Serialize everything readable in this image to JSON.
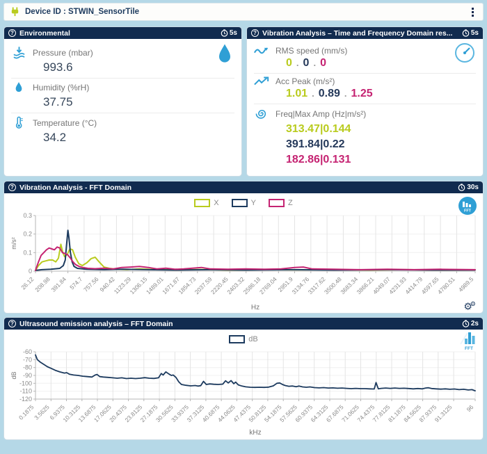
{
  "device_bar": {
    "title": "Device ID : STWIN_SensorTile"
  },
  "colors": {
    "accent_blue": "#2f9fd5",
    "header_navy": "#112b4f",
    "series_x_lime": "#b9cb1e",
    "series_y_navy": "#1c3a5e",
    "series_z_magenta": "#c52372",
    "page_background": "#b5d8e7"
  },
  "panels": {
    "environmental": {
      "title": "Environmental",
      "refresh": "5s",
      "metrics": [
        {
          "icon": "pressure-icon",
          "label": "Pressure (mbar)",
          "value": "993.6"
        },
        {
          "icon": "humidity-icon",
          "label": "Humidity (%rH)",
          "value": "37.75"
        },
        {
          "icon": "temperature-icon",
          "label": "Temperature (°C)",
          "value": "34.2"
        }
      ]
    },
    "vibration_time": {
      "title": "Vibration Analysis – Time and Frequency Domain res...",
      "refresh": "5s",
      "rms": {
        "label": "RMS speed (mm/s)",
        "values": [
          "0",
          "0",
          "0"
        ]
      },
      "acc_peak": {
        "label": "Acc Peak (m/s²)",
        "values": [
          "1.01",
          "0.89",
          "1.25"
        ]
      },
      "freq_max_amp": {
        "label": "Freq|Max Amp (Hz|m/s²)",
        "lines": [
          "313.47|0.144",
          "391.84|0.22",
          "182.86|0.131"
        ]
      }
    },
    "vibration_fft": {
      "title": "Vibration Analysis - FFT Domain",
      "refresh": "30s"
    },
    "ultrasound_fft": {
      "title": "Ultrasound emission analysis – FFT Domain",
      "refresh": "2s"
    }
  },
  "chart_data": [
    {
      "type": "line",
      "title": "Vibration Analysis - FFT Domain",
      "xlabel": "Hz",
      "ylabel": "m/s²",
      "ylim": [
        0,
        0.3
      ],
      "yticks": [
        0,
        0.1,
        0.2,
        0.3
      ],
      "xlim": [
        26.12,
        4989.5
      ],
      "xticks": [
        26.12,
        208.98,
        391.84,
        574.7,
        757.56,
        940.42,
        1123.29,
        1306.15,
        1489.01,
        1671.87,
        1854.73,
        2037.59,
        2220.45,
        2403.32,
        2586.18,
        2769.04,
        2951.9,
        3134.76,
        3317.62,
        3500.48,
        3683.34,
        3866.21,
        4049.07,
        4231.93,
        4414.79,
        4597.65,
        4780.51,
        4989.5
      ],
      "grid": "on",
      "legend_position": "top",
      "stroke": 2,
      "series": [
        {
          "name": "X",
          "color": "#b9cb1e",
          "points": [
            [
              26,
              0.004
            ],
            [
              60,
              0.03
            ],
            [
              100,
              0.05
            ],
            [
              140,
              0.055
            ],
            [
              180,
              0.06
            ],
            [
              220,
              0.06
            ],
            [
              255,
              0.05
            ],
            [
              285,
              0.07
            ],
            [
              313,
              0.145
            ],
            [
              335,
              0.1
            ],
            [
              355,
              0.078
            ],
            [
              385,
              0.09
            ],
            [
              415,
              0.12
            ],
            [
              445,
              0.115
            ],
            [
              475,
              0.075
            ],
            [
              515,
              0.04
            ],
            [
              555,
              0.03
            ],
            [
              605,
              0.045
            ],
            [
              655,
              0.068
            ],
            [
              700,
              0.075
            ],
            [
              745,
              0.05
            ],
            [
              800,
              0.022
            ],
            [
              860,
              0.015
            ],
            [
              940,
              0.01
            ],
            [
              1060,
              0.008
            ],
            [
              1200,
              0.012
            ],
            [
              1400,
              0.008
            ],
            [
              1650,
              0.007
            ],
            [
              1900,
              0.009
            ],
            [
              2200,
              0.006
            ],
            [
              2600,
              0.008
            ],
            [
              3000,
              0.007
            ],
            [
              3400,
              0.008
            ],
            [
              3800,
              0.006
            ],
            [
              4200,
              0.008
            ],
            [
              4600,
              0.006
            ],
            [
              4989,
              0.007
            ]
          ]
        },
        {
          "name": "Y",
          "color": "#1c3a5e",
          "points": [
            [
              26,
              0.004
            ],
            [
              100,
              0.008
            ],
            [
              200,
              0.01
            ],
            [
              300,
              0.015
            ],
            [
              340,
              0.03
            ],
            [
              362,
              0.06
            ],
            [
              376,
              0.14
            ],
            [
              392,
              0.22
            ],
            [
              404,
              0.18
            ],
            [
              420,
              0.1
            ],
            [
              440,
              0.05
            ],
            [
              462,
              0.025
            ],
            [
              500,
              0.015
            ],
            [
              600,
              0.01
            ],
            [
              800,
              0.008
            ],
            [
              1000,
              0.01
            ],
            [
              1300,
              0.008
            ],
            [
              1600,
              0.006
            ],
            [
              2000,
              0.008
            ],
            [
              2400,
              0.006
            ],
            [
              2900,
              0.008
            ],
            [
              3400,
              0.006
            ],
            [
              4000,
              0.008
            ],
            [
              4500,
              0.006
            ],
            [
              4989,
              0.006
            ]
          ]
        },
        {
          "name": "Z",
          "color": "#c52372",
          "points": [
            [
              26,
              0.004
            ],
            [
              60,
              0.05
            ],
            [
              90,
              0.085
            ],
            [
              120,
              0.1
            ],
            [
              150,
              0.115
            ],
            [
              180,
              0.125
            ],
            [
              210,
              0.12
            ],
            [
              240,
              0.115
            ],
            [
              270,
              0.13
            ],
            [
              300,
              0.125
            ],
            [
              330,
              0.1
            ],
            [
              360,
              0.095
            ],
            [
              390,
              0.088
            ],
            [
              420,
              0.07
            ],
            [
              450,
              0.05
            ],
            [
              480,
              0.035
            ],
            [
              520,
              0.025
            ],
            [
              560,
              0.02
            ],
            [
              620,
              0.015
            ],
            [
              700,
              0.013
            ],
            [
              800,
              0.016
            ],
            [
              900,
              0.012
            ],
            [
              1000,
              0.02
            ],
            [
              1100,
              0.022
            ],
            [
              1200,
              0.025
            ],
            [
              1300,
              0.02
            ],
            [
              1400,
              0.012
            ],
            [
              1500,
              0.016
            ],
            [
              1600,
              0.01
            ],
            [
              1700,
              0.012
            ],
            [
              1800,
              0.016
            ],
            [
              1900,
              0.02
            ],
            [
              2000,
              0.012
            ],
            [
              2200,
              0.01
            ],
            [
              2400,
              0.012
            ],
            [
              2600,
              0.01
            ],
            [
              2800,
              0.012
            ],
            [
              2950,
              0.02
            ],
            [
              3050,
              0.022
            ],
            [
              3150,
              0.012
            ],
            [
              3400,
              0.01
            ],
            [
              3700,
              0.008
            ],
            [
              4000,
              0.01
            ],
            [
              4300,
              0.008
            ],
            [
              4600,
              0.01
            ],
            [
              4989,
              0.008
            ]
          ]
        }
      ]
    },
    {
      "type": "line",
      "title": "Ultrasound emission analysis – FFT Domain",
      "xlabel": "kHz",
      "ylabel": "dB",
      "ylim": [
        -120,
        -60
      ],
      "yticks": [
        -60,
        -70,
        -80,
        -90,
        -100,
        -110,
        -120
      ],
      "xlim": [
        0.1875,
        96
      ],
      "xticks": [
        0.1875,
        3.5625,
        6.9375,
        10.3125,
        13.6875,
        17.0625,
        20.4375,
        23.8125,
        27.1875,
        30.5625,
        33.9375,
        37.3125,
        40.6875,
        44.0625,
        47.4375,
        50.8125,
        54.1875,
        57.5625,
        60.9375,
        64.3125,
        67.6875,
        71.0625,
        74.4375,
        77.8125,
        81.1875,
        84.5625,
        87.9375,
        91.3125,
        96
      ],
      "grid": "on",
      "legend_position": "top",
      "stroke": 1.8,
      "series": [
        {
          "name": "dB",
          "color": "#1c3a5e",
          "points": [
            [
              0.19,
              -64
            ],
            [
              0.6,
              -70
            ],
            [
              1.2,
              -73
            ],
            [
              2,
              -76
            ],
            [
              2.8,
              -79
            ],
            [
              3.6,
              -81
            ],
            [
              4.5,
              -83.5
            ],
            [
              5.5,
              -85.5
            ],
            [
              6.5,
              -87
            ],
            [
              7,
              -86.5
            ],
            [
              7.6,
              -88.5
            ],
            [
              8.5,
              -89.5
            ],
            [
              9.5,
              -90
            ],
            [
              10.5,
              -91
            ],
            [
              11.5,
              -91.5
            ],
            [
              12.5,
              -92
            ],
            [
              13.2,
              -89.5
            ],
            [
              13.6,
              -88.8
            ],
            [
              14.2,
              -91.5
            ],
            [
              15,
              -92
            ],
            [
              16,
              -92.5
            ],
            [
              17,
              -93
            ],
            [
              18,
              -93.5
            ],
            [
              19,
              -93
            ],
            [
              20,
              -94
            ],
            [
              21,
              -93.5
            ],
            [
              22,
              -94
            ],
            [
              23,
              -93.5
            ],
            [
              24,
              -92.8
            ],
            [
              25,
              -93.5
            ],
            [
              26,
              -93.8
            ],
            [
              27,
              -93
            ],
            [
              27.6,
              -87.5
            ],
            [
              28,
              -89.5
            ],
            [
              28.6,
              -85.5
            ],
            [
              29.2,
              -88
            ],
            [
              29.8,
              -90
            ],
            [
              30.2,
              -89.5
            ],
            [
              30.8,
              -92.5
            ],
            [
              31.4,
              -98
            ],
            [
              32,
              -101.5
            ],
            [
              33,
              -102.5
            ],
            [
              34,
              -103.2
            ],
            [
              35,
              -102.8
            ],
            [
              35.6,
              -103.5
            ],
            [
              36.2,
              -103
            ],
            [
              36.8,
              -97.5
            ],
            [
              37.4,
              -101.5
            ],
            [
              38.2,
              -100.8
            ],
            [
              39,
              -101.2
            ],
            [
              40,
              -101.5
            ],
            [
              41,
              -101
            ],
            [
              41.6,
              -96.8
            ],
            [
              42.2,
              -99.5
            ],
            [
              42.8,
              -96.5
            ],
            [
              43.4,
              -100.5
            ],
            [
              43.8,
              -98.5
            ],
            [
              44.4,
              -102
            ],
            [
              45.2,
              -103.5
            ],
            [
              46,
              -104.5
            ],
            [
              47,
              -105
            ],
            [
              48,
              -105.2
            ],
            [
              49,
              -105
            ],
            [
              50,
              -105.2
            ],
            [
              51,
              -104.8
            ],
            [
              52,
              -103.2
            ],
            [
              52.8,
              -100
            ],
            [
              53.4,
              -99.5
            ],
            [
              54,
              -101.5
            ],
            [
              54.6,
              -102.8
            ],
            [
              55.4,
              -103.8
            ],
            [
              56.2,
              -103.4
            ],
            [
              57,
              -104.4
            ],
            [
              57.6,
              -103.4
            ],
            [
              58.4,
              -104.6
            ],
            [
              59.2,
              -105
            ],
            [
              60,
              -104.6
            ],
            [
              61,
              -105.4
            ],
            [
              62,
              -105.8
            ],
            [
              63,
              -105.4
            ],
            [
              64,
              -106
            ],
            [
              65,
              -105.8
            ],
            [
              66,
              -106.2
            ],
            [
              67,
              -106
            ],
            [
              68,
              -106.4
            ],
            [
              69,
              -106.8
            ],
            [
              70,
              -106.4
            ],
            [
              71,
              -106.8
            ],
            [
              72,
              -106.8
            ],
            [
              73,
              -107
            ],
            [
              74,
              -107.2
            ],
            [
              74.4,
              -99
            ],
            [
              74.9,
              -107
            ],
            [
              75.5,
              -106.4
            ],
            [
              76.5,
              -106
            ],
            [
              77.5,
              -106.4
            ],
            [
              78.5,
              -106
            ],
            [
              79.5,
              -106.4
            ],
            [
              80.5,
              -106.2
            ],
            [
              81.5,
              -106.6
            ],
            [
              82.5,
              -107
            ],
            [
              83.5,
              -106.6
            ],
            [
              84.5,
              -107
            ],
            [
              85.2,
              -106
            ],
            [
              85.8,
              -105.6
            ],
            [
              86.5,
              -106.6
            ],
            [
              87.5,
              -107
            ],
            [
              88.5,
              -107.4
            ],
            [
              89.5,
              -107
            ],
            [
              90.5,
              -107.6
            ],
            [
              91.5,
              -107.2
            ],
            [
              92.5,
              -108
            ],
            [
              93.5,
              -107.6
            ],
            [
              94.5,
              -108.4
            ],
            [
              95.3,
              -108
            ],
            [
              96,
              -109.5
            ]
          ]
        }
      ]
    }
  ]
}
